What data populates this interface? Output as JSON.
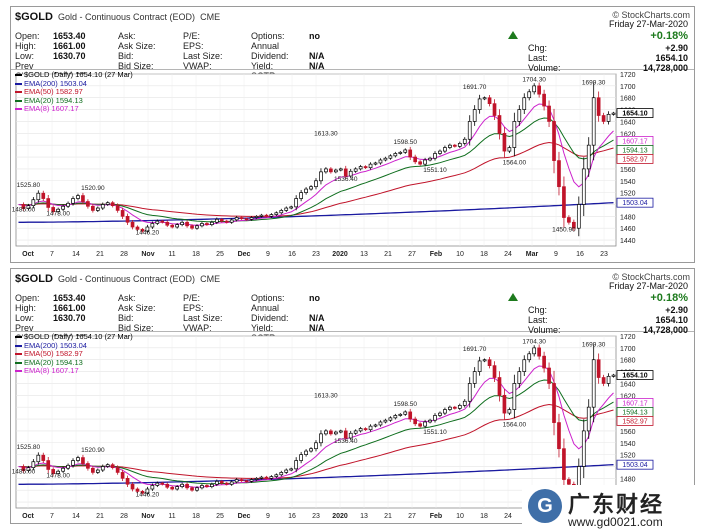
{
  "header": {
    "symbol": "$GOLD",
    "description": "Gold - Continuous Contract (EOD)",
    "exchange": "CME",
    "brand": "© StockCharts.com",
    "day": "Friday",
    "date": "27-Mar-2020",
    "change_pct": "+0.18%",
    "col1": [
      {
        "label": "Open:",
        "value": "1653.40"
      },
      {
        "label": "High:",
        "value": "1661.00"
      },
      {
        "label": "Low:",
        "value": "1630.70"
      },
      {
        "label": "Prev Close:",
        "value": "1651.20"
      }
    ],
    "col2": [
      {
        "label": "Ask:",
        "value": ""
      },
      {
        "label": "Ask Size:",
        "value": ""
      },
      {
        "label": "Bid:",
        "value": ""
      },
      {
        "label": "Bid Size:",
        "value": ""
      }
    ],
    "col3": [
      {
        "label": "P/E:",
        "value": ""
      },
      {
        "label": "EPS:",
        "value": ""
      },
      {
        "label": "Last Size:",
        "value": ""
      },
      {
        "label": "VWAP:",
        "value": ""
      }
    ],
    "col4": [
      {
        "label": "Options:",
        "value": "no"
      },
      {
        "label": "Annual Dividend:",
        "value": "N/A"
      },
      {
        "label": "Yield:",
        "value": "N/A"
      },
      {
        "label": "SCTR:",
        "value": ""
      }
    ],
    "right": [
      {
        "label": "Chg:",
        "value": "+2.90"
      },
      {
        "label": "Last:",
        "value": "1654.10"
      },
      {
        "label": "Volume:",
        "value": "14,728,000"
      }
    ]
  },
  "legend": [
    {
      "text": "$GOLD (Daily) 1654.10 (27 Mar)",
      "color": "#000000"
    },
    {
      "text": "EMA(200) 1503.04",
      "color": "#1a1aa0"
    },
    {
      "text": "EMA(50) 1582.97",
      "color": "#c0142a"
    },
    {
      "text": "EMA(20) 1594.13",
      "color": "#0f6e1e"
    },
    {
      "text": "EMA(8) 1607.17",
      "color": "#cc22cc"
    }
  ],
  "watermark": {
    "logo_letter": "G",
    "name": "广东财经",
    "url": "www.gd0021.com"
  },
  "colors": {
    "up": "#000000",
    "down": "#c0142a",
    "ema200": "#1a1aa0",
    "ema50": "#c0142a",
    "ema20": "#0f6e1e",
    "ema8": "#cc22cc"
  },
  "chart_data": {
    "type": "candlestick",
    "ylim": [
      1430,
      1720
    ],
    "yticks": [
      1440,
      1460,
      1480,
      1500,
      1520,
      1540,
      1560,
      1580,
      1600,
      1620,
      1640,
      1660,
      1680,
      1700,
      1720
    ],
    "x_ticks": [
      "Oct",
      "7",
      "14",
      "21",
      "28",
      "Nov",
      "11",
      "18",
      "25",
      "Dec",
      "9",
      "16",
      "23",
      "2020",
      "13",
      "21",
      "27",
      "Feb",
      "10",
      "18",
      "24",
      "Mar",
      "9",
      "16",
      "23"
    ],
    "price_flags": [
      {
        "value": "1654.10",
        "y": 1654.1,
        "style": "bold"
      },
      {
        "value": "1607.17",
        "y": 1607.17
      },
      {
        "value": "1594.13",
        "y": 1594.13
      },
      {
        "value": "1582.97",
        "y": 1582.97
      },
      {
        "value": "1503.04",
        "y": 1503.04
      }
    ],
    "annotations": [
      {
        "text": "1525.80",
        "x": 2,
        "y": 1525.8
      },
      {
        "text": "1485.00",
        "x": 1,
        "y": 1485
      },
      {
        "text": "1520.90",
        "x": 15,
        "y": 1520.9
      },
      {
        "text": "1478.00",
        "x": 8,
        "y": 1478
      },
      {
        "text": "1446.20",
        "x": 26,
        "y": 1446.2
      },
      {
        "text": "1613.30",
        "x": 62,
        "y": 1613.3
      },
      {
        "text": "1536.40",
        "x": 66,
        "y": 1536.4
      },
      {
        "text": "1598.50",
        "x": 78,
        "y": 1598.5
      },
      {
        "text": "1551.10",
        "x": 84,
        "y": 1551.1
      },
      {
        "text": "1691.70",
        "x": 92,
        "y": 1691.7
      },
      {
        "text": "1564.00",
        "x": 100,
        "y": 1564
      },
      {
        "text": "1704.30",
        "x": 104,
        "y": 1704.3
      },
      {
        "text": "1450.90",
        "x": 110,
        "y": 1450.9
      },
      {
        "text": "1699.30",
        "x": 116,
        "y": 1699.3
      }
    ],
    "closes": [
      1500,
      1493,
      1498,
      1508,
      1519,
      1510,
      1495,
      1488,
      1492,
      1497,
      1502,
      1510,
      1515,
      1505,
      1497,
      1490,
      1494,
      1500,
      1503,
      1498,
      1490,
      1480,
      1470,
      1462,
      1458,
      1455,
      1462,
      1468,
      1472,
      1470,
      1465,
      1462,
      1466,
      1470,
      1464,
      1460,
      1464,
      1468,
      1466,
      1470,
      1475,
      1472,
      1470,
      1474,
      1478,
      1476,
      1475,
      1478,
      1480,
      1482,
      1480,
      1483,
      1486,
      1490,
      1494,
      1496,
      1510,
      1520,
      1526,
      1530,
      1540,
      1555,
      1560,
      1555,
      1558,
      1560,
      1548,
      1556,
      1560,
      1564,
      1562,
      1568,
      1570,
      1575,
      1578,
      1582,
      1586,
      1588,
      1592,
      1580,
      1572,
      1568,
      1575,
      1578,
      1586,
      1590,
      1596,
      1600,
      1598,
      1603,
      1610,
      1640,
      1660,
      1678,
      1680,
      1670,
      1650,
      1620,
      1590,
      1596,
      1640,
      1660,
      1680,
      1690,
      1700,
      1686,
      1666,
      1640,
      1574,
      1530,
      1478,
      1470,
      1460,
      1500,
      1560,
      1600,
      1680,
      1650,
      1640,
      1652,
      1654.1
    ]
  }
}
